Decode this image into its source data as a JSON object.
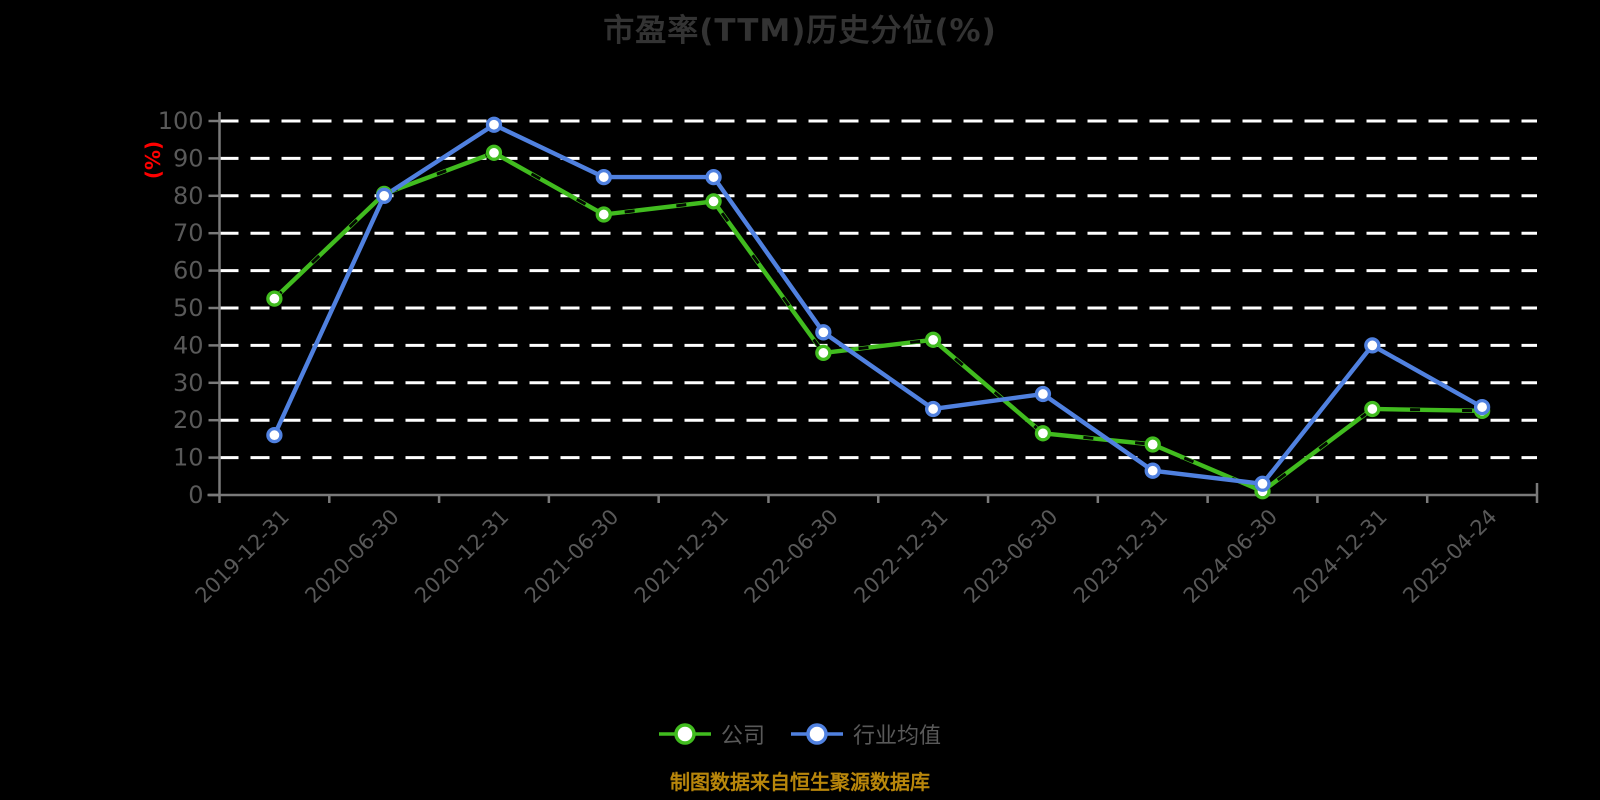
{
  "title": "市盈率(TTM)历史分位(%)",
  "footer": {
    "note": "制图数据来自恒生聚源数据库"
  },
  "colors": {
    "background": "#000000",
    "title": "#333333",
    "axis": "#7A7A7A",
    "grid": "#FFFFFF",
    "text": "#595959",
    "unit_label": "#FF0000",
    "footer": "#B8860B",
    "company": "#41BC1F",
    "industry": "#5081E0",
    "marker_fill": "#FFFFFF"
  },
  "chart_data": {
    "type": "line",
    "title": "市盈率(TTM)历史分位(%)",
    "xlabel": "",
    "ylabel": "(%)",
    "ylim": [
      0,
      100
    ],
    "ytick_step": 10,
    "grid": "horizontal-dashed-white",
    "legend_position": "bottom",
    "x_label_rotation_deg": 45,
    "categories": [
      "2019-12-31",
      "2020-06-30",
      "2020-12-31",
      "2021-06-30",
      "2021-12-31",
      "2022-06-30",
      "2022-12-31",
      "2023-06-30",
      "2023-12-31",
      "2024-06-30",
      "2024-12-31",
      "2025-04-24"
    ],
    "series": [
      {
        "name": "公司",
        "color": "#41BC1F",
        "marker": "circle-white-fill",
        "values": [
          52.5,
          80.5,
          91.5,
          75,
          78.5,
          38,
          41.5,
          16.5,
          13.5,
          1,
          23,
          22.5
        ]
      },
      {
        "name": "行业均值",
        "color": "#5081E0",
        "marker": "circle-white-fill",
        "values": [
          16,
          80,
          99,
          85,
          85,
          43.5,
          23,
          27,
          6.5,
          3,
          40,
          23.5
        ]
      }
    ]
  }
}
